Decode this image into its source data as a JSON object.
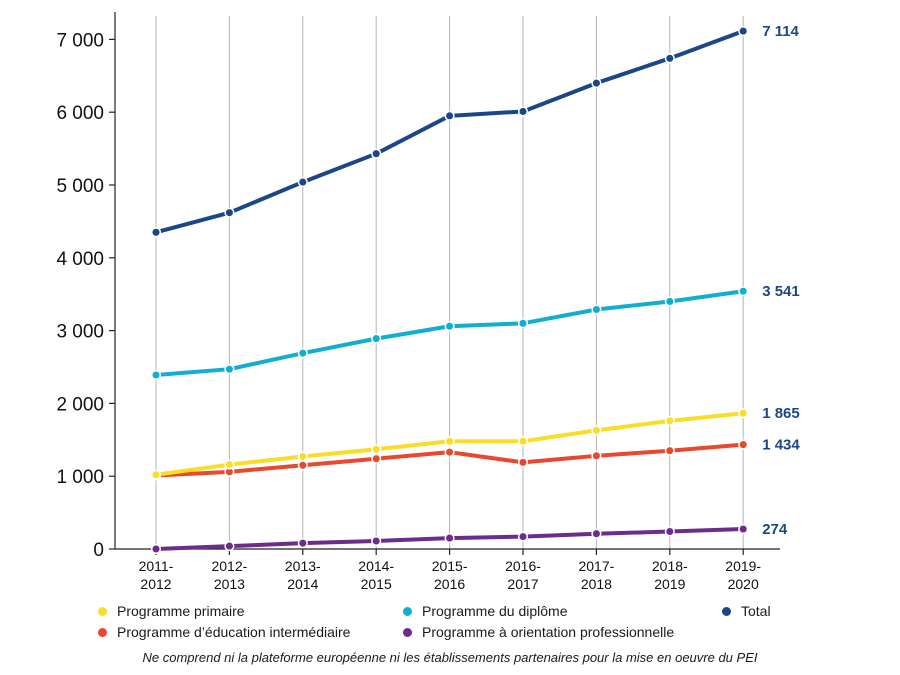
{
  "chart_data": {
    "type": "line",
    "title": "",
    "xlabel": "",
    "ylabel": "",
    "categories": [
      [
        "2011-",
        "2012"
      ],
      [
        "2012-",
        "2013"
      ],
      [
        "2013-",
        "2014"
      ],
      [
        "2014-",
        "2015"
      ],
      [
        "2015-",
        "2016"
      ],
      [
        "2016-",
        "2017"
      ],
      [
        "2017-",
        "2018"
      ],
      [
        "2018-",
        "2019"
      ],
      [
        "2019-",
        "2020"
      ]
    ],
    "ylim": [
      0,
      7300
    ],
    "yticks": [
      {
        "value": 0,
        "label": "0"
      },
      {
        "value": 1000,
        "label": "1 000"
      },
      {
        "value": 2000,
        "label": "2 000"
      },
      {
        "value": 3000,
        "label": "3 000"
      },
      {
        "value": 4000,
        "label": "4 000"
      },
      {
        "value": 5000,
        "label": "5 000"
      },
      {
        "value": 6000,
        "label": "6 000"
      },
      {
        "value": 7000,
        "label": "7 000"
      }
    ],
    "grid": "vertical",
    "series": [
      {
        "key": "total",
        "name": "Total",
        "color": "#1b4687",
        "values": [
          4350,
          4620,
          5040,
          5430,
          5950,
          6010,
          6400,
          6740,
          7114
        ],
        "end_label": "7 114"
      },
      {
        "key": "diplome",
        "name": "Programme du diplôme",
        "color": "#12aed0",
        "values": [
          2390,
          2470,
          2690,
          2890,
          3060,
          3100,
          3290,
          3400,
          3541
        ],
        "end_label": "3 541"
      },
      {
        "key": "primaire",
        "name": "Programme primaire",
        "color": "#f9dd27",
        "values": [
          1020,
          1160,
          1270,
          1370,
          1480,
          1480,
          1630,
          1760,
          1865
        ],
        "end_label": "1 865"
      },
      {
        "key": "pei",
        "name": "Programme d’éducation intermédiaire",
        "color": "#e8482d",
        "values": [
          1010,
          1060,
          1150,
          1240,
          1330,
          1190,
          1280,
          1350,
          1434
        ],
        "end_label": "1 434"
      },
      {
        "key": "pop",
        "name": "Programme à orientation professionnelle",
        "color": "#6b2c8c",
        "values": [
          0,
          40,
          80,
          110,
          150,
          170,
          210,
          240,
          274
        ],
        "end_label": "274"
      }
    ]
  },
  "legend": {
    "primaire": {
      "label": "Programme primaire",
      "color": "#f9dd27"
    },
    "diplome": {
      "label": "Programme du diplôme",
      "color": "#12aed0"
    },
    "total": {
      "label": "Total",
      "color": "#1b4687"
    },
    "pei": {
      "label": "Programme d’éducation intermédiaire",
      "color": "#e8482d"
    },
    "pop": {
      "label": "Programme à orientation professionnelle",
      "color": "#6b2c8c"
    }
  },
  "footnote": "Ne comprend ni la plateforme européenne ni les établissements partenaires pour la mise en oeuvre du PEI"
}
